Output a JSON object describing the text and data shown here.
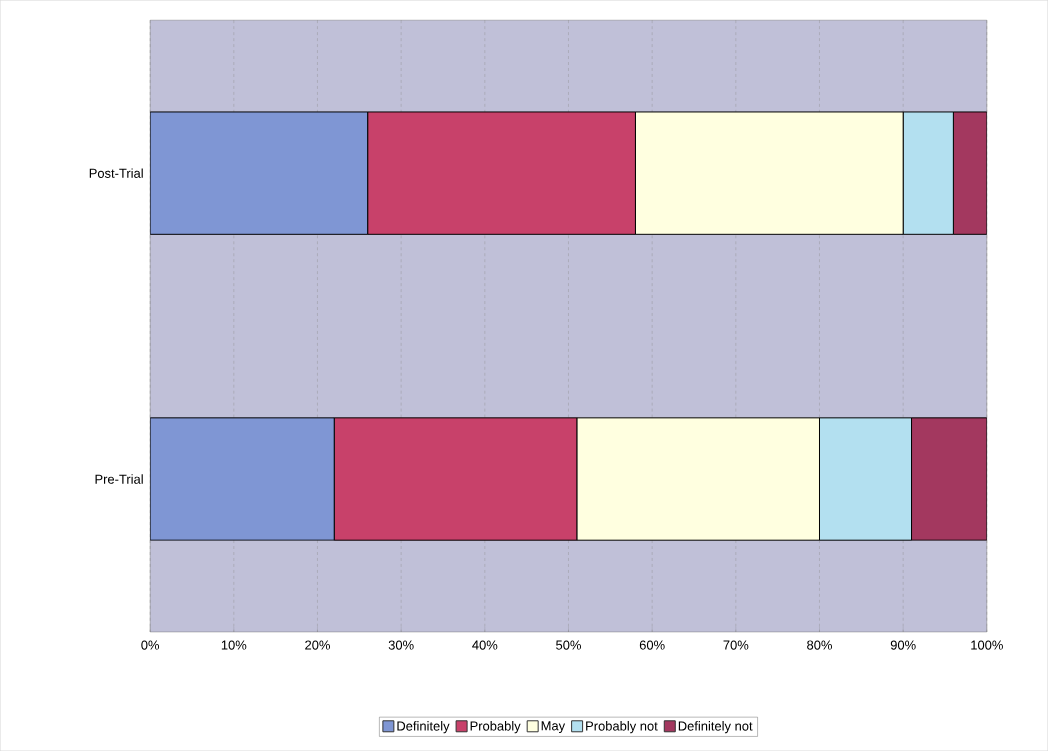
{
  "chart_data": {
    "type": "bar",
    "orientation": "horizontal",
    "stacked": true,
    "categories": [
      "Post-Trial",
      "Pre-Trial"
    ],
    "series": [
      {
        "name": "Definitely",
        "color": "#7f96d4",
        "values": [
          26,
          22
        ]
      },
      {
        "name": "Probably",
        "color": "#c8416a",
        "values": [
          32,
          29
        ]
      },
      {
        "name": "May",
        "color": "#ffffe0",
        "values": [
          32,
          29
        ]
      },
      {
        "name": "Probably not",
        "color": "#b3e0f0",
        "values": [
          6,
          11
        ]
      },
      {
        "name": "Definitely not",
        "color": "#a3385f",
        "values": [
          4,
          9
        ]
      }
    ],
    "xlim": [
      0,
      100
    ],
    "xticks": [
      {
        "value": 0,
        "label": "0%"
      },
      {
        "value": 10,
        "label": "10%"
      },
      {
        "value": 20,
        "label": "20%"
      },
      {
        "value": 30,
        "label": "30%"
      },
      {
        "value": 40,
        "label": "40%"
      },
      {
        "value": 50,
        "label": "50%"
      },
      {
        "value": 60,
        "label": "60%"
      },
      {
        "value": 70,
        "label": "70%"
      },
      {
        "value": 80,
        "label": "80%"
      },
      {
        "value": 90,
        "label": "90%"
      },
      {
        "value": 100,
        "label": "100%"
      }
    ],
    "grid": "x",
    "legend": "bottom"
  }
}
